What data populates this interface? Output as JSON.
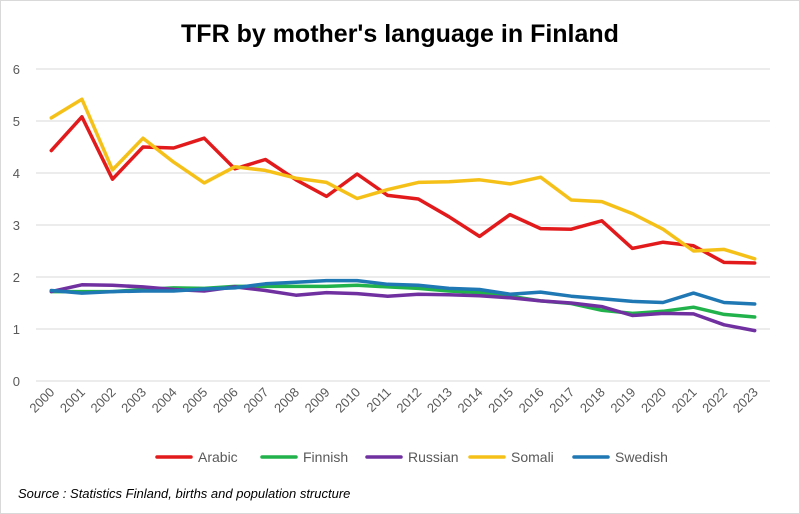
{
  "chart_data": {
    "type": "line",
    "title": "TFR by mother's language in Finland",
    "xlabel": "",
    "ylabel": "",
    "ylim": [
      0,
      6
    ],
    "yticks": [
      0,
      1,
      2,
      3,
      4,
      5,
      6
    ],
    "grid": true,
    "legend_position": "bottom",
    "categories": [
      "2000",
      "2001",
      "2002",
      "2003",
      "2004",
      "2005",
      "2006",
      "2007",
      "2008",
      "2009",
      "2010",
      "2011",
      "2012",
      "2013",
      "2014",
      "2015",
      "2016",
      "2017",
      "2018",
      "2019",
      "2020",
      "2021",
      "2022",
      "2023"
    ],
    "series": [
      {
        "name": "Arabic",
        "color": "#e31a1c",
        "values": [
          4.43,
          5.08,
          3.88,
          4.5,
          4.48,
          4.67,
          4.08,
          4.26,
          3.87,
          3.55,
          3.98,
          3.57,
          3.5,
          3.16,
          2.78,
          3.2,
          2.93,
          2.92,
          3.08,
          2.55,
          2.67,
          2.6,
          2.28,
          2.27
        ]
      },
      {
        "name": "Finnish",
        "color": "#22b24c",
        "values": [
          1.72,
          1.72,
          1.72,
          1.76,
          1.79,
          1.78,
          1.82,
          1.82,
          1.82,
          1.82,
          1.84,
          1.81,
          1.78,
          1.73,
          1.7,
          1.63,
          1.54,
          1.49,
          1.36,
          1.3,
          1.34,
          1.42,
          1.28,
          1.23
        ]
      },
      {
        "name": "Russian",
        "color": "#7030a0",
        "values": [
          1.72,
          1.85,
          1.84,
          1.81,
          1.76,
          1.73,
          1.81,
          1.74,
          1.65,
          1.7,
          1.68,
          1.63,
          1.67,
          1.66,
          1.64,
          1.6,
          1.54,
          1.5,
          1.43,
          1.26,
          1.3,
          1.29,
          1.08,
          0.97
        ]
      },
      {
        "name": "Somali",
        "color": "#f5c118",
        "values": [
          5.06,
          5.42,
          4.06,
          4.67,
          4.21,
          3.81,
          4.12,
          4.05,
          3.9,
          3.82,
          3.51,
          3.68,
          3.82,
          3.83,
          3.87,
          3.79,
          3.92,
          3.48,
          3.45,
          3.22,
          2.92,
          2.5,
          2.53,
          2.35
        ]
      },
      {
        "name": "Swedish",
        "color": "#1f77b4",
        "values": [
          1.74,
          1.69,
          1.72,
          1.73,
          1.73,
          1.77,
          1.79,
          1.87,
          1.9,
          1.93,
          1.93,
          1.86,
          1.84,
          1.78,
          1.76,
          1.67,
          1.71,
          1.63,
          1.58,
          1.53,
          1.51,
          1.69,
          1.51,
          1.48
        ]
      }
    ]
  },
  "source_text": "Source :  Statistics Finland, births and population structure"
}
